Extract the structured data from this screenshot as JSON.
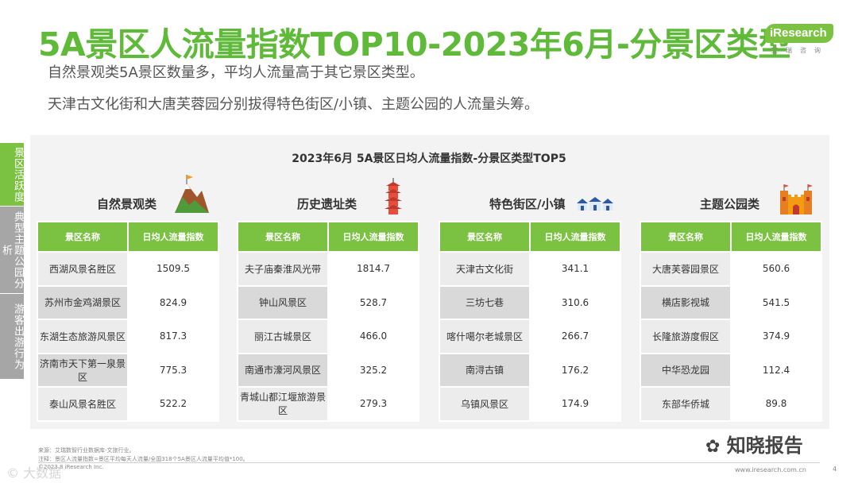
{
  "title": "5A景区人流量指数TOP10-2023年6月-分景区类型",
  "logo": {
    "brand": "iResearch",
    "sub": "艾瑞咨询"
  },
  "subtitles": [
    "自然景观类5A景区数量多，平均人流量高于其它景区类型。",
    "天津古文化街和大唐芙蓉园分别拔得特色街区/小镇、主题公园的人流量头筹。"
  ],
  "side_tabs": [
    "景区活跃度",
    "典型主题公园分析",
    "游客出游行为"
  ],
  "chart_data": {
    "type": "table",
    "title": "2023年6月 5A景区日均人流量指数-分景区类型TOP5",
    "columns": [
      "景区名称",
      "日均人流量指数"
    ],
    "groups": [
      {
        "name": "自然景观类",
        "rows": [
          {
            "name": "西湖风景名胜区",
            "value": "1509.5"
          },
          {
            "name": "苏州市金鸡湖景区",
            "value": "824.9"
          },
          {
            "name": "东湖生态旅游风景区",
            "value": "817.3"
          },
          {
            "name": "济南市天下第一泉景区",
            "value": "775.3"
          },
          {
            "name": "泰山风景名胜区",
            "value": "522.2"
          }
        ]
      },
      {
        "name": "历史遗址类",
        "rows": [
          {
            "name": "夫子庙秦淮风光带",
            "value": "1814.7"
          },
          {
            "name": "钟山风景区",
            "value": "528.7"
          },
          {
            "name": "丽江古城景区",
            "value": "466.0"
          },
          {
            "name": "南通市濠河风景区",
            "value": "325.2"
          },
          {
            "name": "青城山都江堰旅游景区",
            "value": "279.3"
          }
        ]
      },
      {
        "name": "特色街区/小镇",
        "rows": [
          {
            "name": "天津古文化街",
            "value": "341.1"
          },
          {
            "name": "三坊七巷",
            "value": "310.6"
          },
          {
            "name": "喀什噶尔老城景区",
            "value": "266.7"
          },
          {
            "name": "南浔古镇",
            "value": "176.2"
          },
          {
            "name": "乌镇风景区",
            "value": "174.9"
          }
        ]
      },
      {
        "name": "主题公园类",
        "rows": [
          {
            "name": "大唐芙蓉园景区",
            "value": "560.6"
          },
          {
            "name": "横店影视城",
            "value": "541.5"
          },
          {
            "name": "长隆旅游度假区",
            "value": "374.9"
          },
          {
            "name": "中华恐龙园",
            "value": "112.4"
          },
          {
            "name": "东部华侨城",
            "value": "89.8"
          }
        ]
      }
    ]
  },
  "footnotes": [
    "来源：艾瑞数智行业数据库-文旅行业。",
    "注释：景区人流量指数=景区平均每天人流量/全国318个5A景区人流量平均值*100。",
    "©2023.8 iResearch Inc."
  ],
  "website": "www.iresearch.com.cn",
  "page_number": "4",
  "watermark": "知晓报告",
  "watermark_left": "© 大数据"
}
